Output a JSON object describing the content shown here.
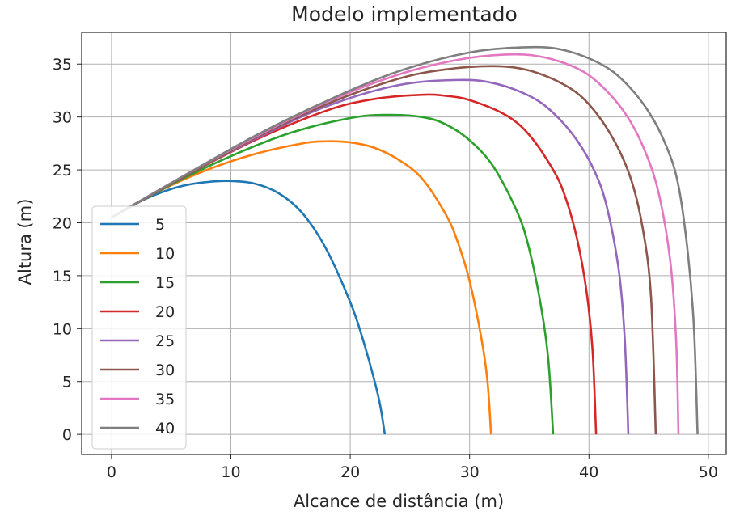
{
  "chart_data": {
    "type": "line",
    "title": "Modelo implementado",
    "xlabel": "Alcance de distância (m)",
    "ylabel": "Altura (m)",
    "xlim": [
      -2.5,
      51.5
    ],
    "ylim": [
      -1.9,
      38.0
    ],
    "x_ticks": [
      0,
      10,
      20,
      30,
      40,
      50
    ],
    "y_ticks": [
      0,
      5,
      10,
      15,
      20,
      25,
      30,
      35
    ],
    "grid": true,
    "legend_position": "lower-left",
    "series": [
      {
        "name": "5",
        "color": "#1f77b4",
        "x": [
          0,
          2,
          4,
          6,
          8,
          10,
          12,
          14,
          16,
          18,
          20,
          21,
          22,
          22.5,
          22.9
        ],
        "y": [
          20.5,
          21.8,
          22.8,
          23.5,
          23.85,
          23.95,
          23.7,
          22.8,
          20.9,
          17.5,
          12.5,
          9.2,
          5.2,
          2.8,
          0
        ]
      },
      {
        "name": "10",
        "color": "#ff7f0e",
        "x": [
          0,
          4,
          8,
          12,
          16,
          18,
          20,
          22,
          24,
          26,
          28,
          29,
          30,
          31,
          31.5,
          31.8
        ],
        "y": [
          20.5,
          23.0,
          25.0,
          26.5,
          27.5,
          27.7,
          27.6,
          27.1,
          26.0,
          24.2,
          20.8,
          18.2,
          14.5,
          9.0,
          5.0,
          0
        ]
      },
      {
        "name": "15",
        "color": "#2ca02c",
        "x": [
          0,
          5,
          10,
          15,
          20,
          23,
          26,
          28,
          30,
          32,
          34,
          35,
          36,
          36.6,
          37.0
        ],
        "y": [
          20.5,
          23.6,
          26.3,
          28.5,
          29.9,
          30.2,
          30.0,
          29.3,
          27.8,
          25.3,
          21.0,
          17.5,
          12.0,
          7.0,
          0
        ]
      },
      {
        "name": "20",
        "color": "#d62728",
        "x": [
          0,
          6,
          12,
          18,
          22,
          26,
          28,
          30,
          33,
          35,
          37,
          38,
          39,
          39.8,
          40.3,
          40.6
        ],
        "y": [
          20.5,
          24.3,
          27.8,
          30.6,
          31.7,
          32.1,
          32.0,
          31.6,
          30.2,
          28.3,
          25.0,
          22.5,
          18.5,
          13.5,
          8.0,
          0
        ]
      },
      {
        "name": "25",
        "color": "#9467bd",
        "x": [
          0,
          6,
          12,
          18,
          24,
          29,
          32,
          35,
          37,
          39,
          40.5,
          41.5,
          42.5,
          43.0,
          43.3
        ],
        "y": [
          20.5,
          24.3,
          27.9,
          31.0,
          33.0,
          33.5,
          33.2,
          32.0,
          30.4,
          27.8,
          24.8,
          21.5,
          15.5,
          9.0,
          0
        ]
      },
      {
        "name": "30",
        "color": "#8c564b",
        "x": [
          0,
          6,
          12,
          18,
          24,
          28,
          32,
          35,
          38,
          40,
          42,
          43.5,
          44.5,
          45.2,
          45.6
        ],
        "y": [
          20.5,
          24.3,
          28.0,
          31.2,
          33.6,
          34.5,
          34.8,
          34.4,
          33.0,
          31.2,
          28.0,
          24.2,
          19.5,
          13.0,
          0
        ]
      },
      {
        "name": "35",
        "color": "#e377c2",
        "x": [
          0,
          6,
          12,
          18,
          24,
          29,
          33,
          36,
          39,
          41,
          43,
          44.5,
          45.8,
          46.8,
          47.3,
          47.5
        ],
        "y": [
          20.5,
          24.4,
          28.1,
          31.4,
          34.0,
          35.4,
          35.9,
          35.7,
          34.6,
          33.0,
          30.4,
          27.3,
          23.0,
          16.5,
          9.0,
          0
        ]
      },
      {
        "name": "40",
        "color": "#7f7f7f",
        "x": [
          0,
          6,
          12,
          18,
          24,
          30,
          35,
          38,
          41,
          43,
          45,
          46.5,
          47.5,
          48.3,
          48.8,
          49.1
        ],
        "y": [
          20.5,
          24.4,
          28.2,
          31.5,
          34.3,
          36.1,
          36.6,
          36.3,
          35.0,
          33.3,
          30.5,
          27.2,
          23.5,
          17.0,
          10.0,
          0
        ]
      }
    ]
  }
}
